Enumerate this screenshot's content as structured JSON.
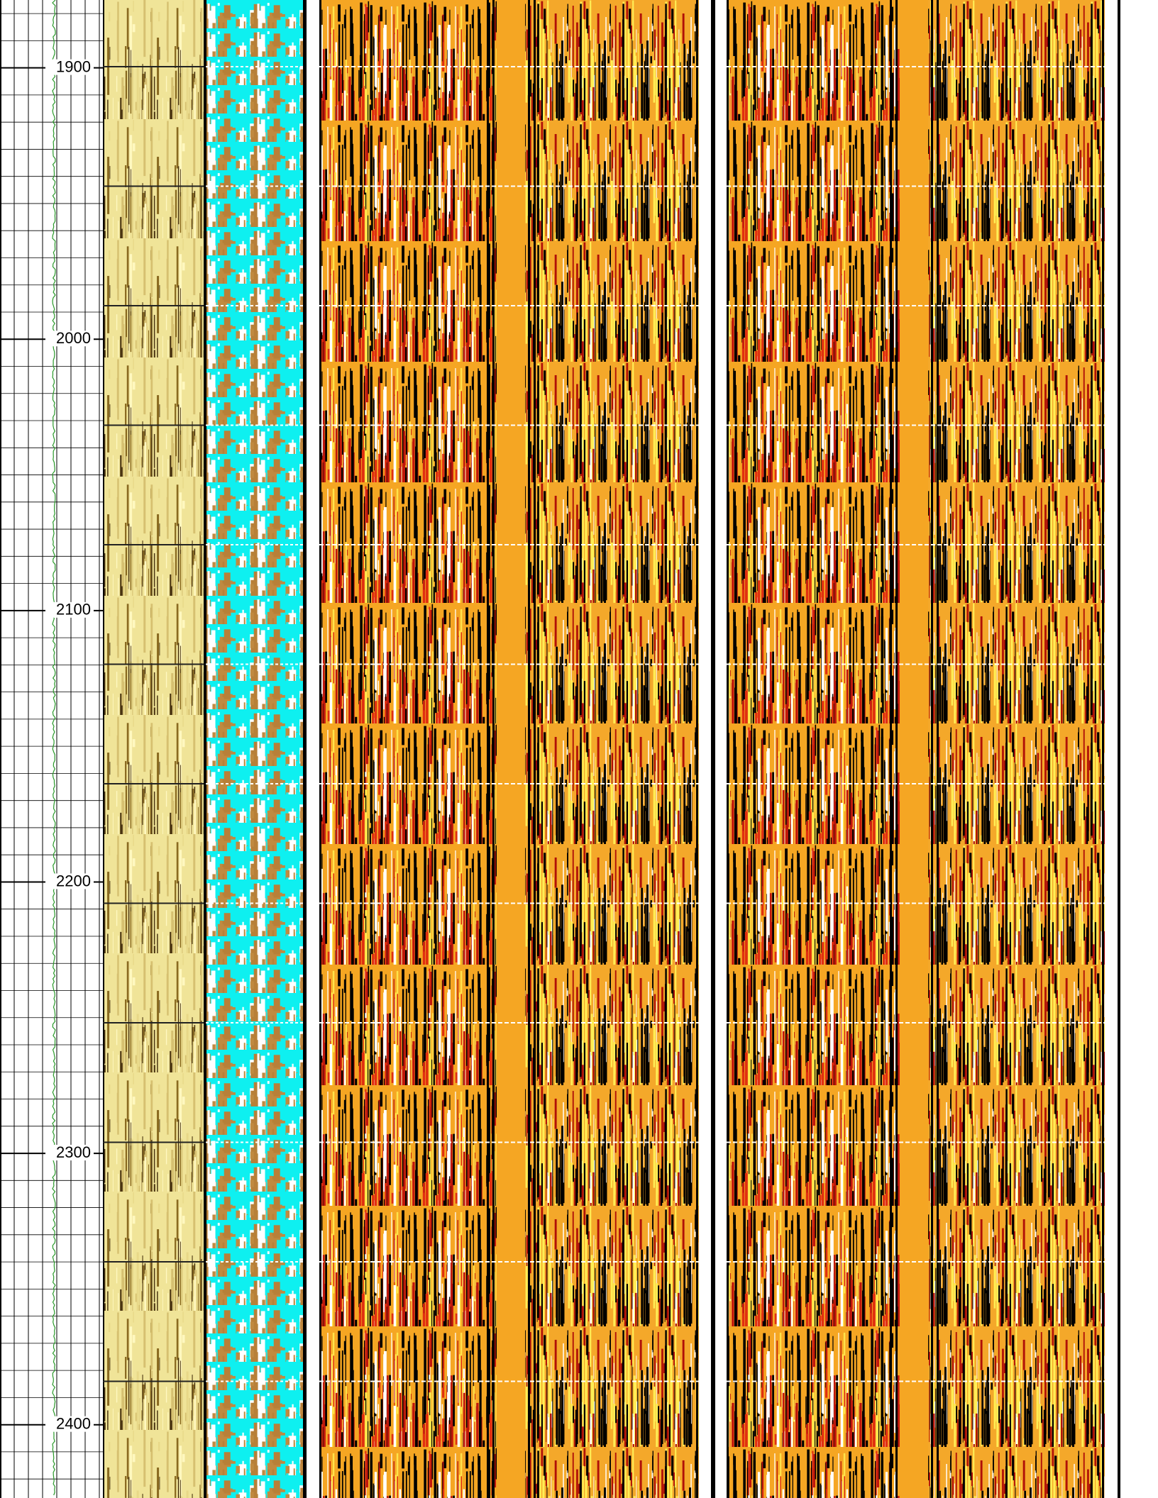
{
  "chart_data": {
    "type": "well-log",
    "ylim": [
      1875,
      2427
    ],
    "yticks": [
      1900,
      2000,
      2100,
      2200,
      2300,
      2400
    ]
  }
}
